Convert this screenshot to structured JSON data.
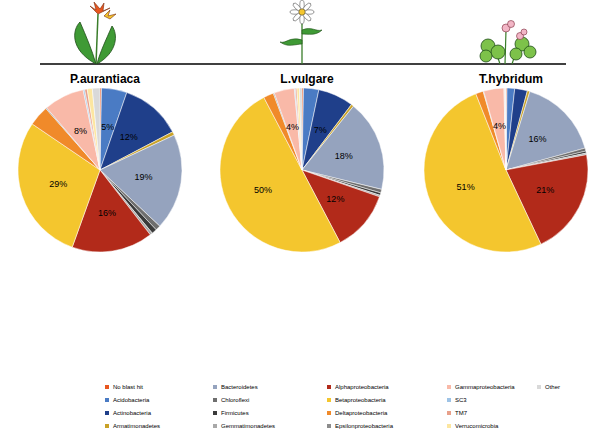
{
  "chart_data": [
    {
      "type": "pie",
      "title": "P.aurantiaca",
      "categories": [
        "No blast hit",
        "Acidobacteria",
        "Actinobacteria",
        "Armatimonadetes",
        "Bacteroidetes",
        "Chloroflexi",
        "Firmicutes",
        "Gemmatimonadetes",
        "Alphaproteobacteria",
        "Betaproteobacteria",
        "Deltaproteobacteria",
        "Epsilonproteobacteria",
        "Gammaproteobacteria",
        "SC3",
        "TM7",
        "Verrucomicrobia",
        "Other"
      ],
      "values": [
        0.3,
        5,
        12,
        0.7,
        19,
        1,
        1,
        0.5,
        16,
        29,
        4,
        0.2,
        8,
        0.3,
        0.5,
        1,
        1.5
      ],
      "value_labels": [
        null,
        "5%",
        "12%",
        null,
        "19%",
        null,
        null,
        null,
        "16%",
        "29%",
        null,
        null,
        "8%",
        null,
        null,
        null,
        null
      ],
      "colors": [
        "#e8561f",
        "#4a7bc4",
        "#1f3f8a",
        "#c9a227",
        "#95a3be",
        "#6e6e6e",
        "#3a3a3a",
        "#a8a8a8",
        "#b22a1a",
        "#f4c62e",
        "#f08a2a",
        "#8c8c8c",
        "#f9b9a8",
        "#9ec3e6",
        "#e8a08a",
        "#fce6a0",
        "#d9d9d9"
      ],
      "data_labels": true,
      "legend": "bottom"
    },
    {
      "type": "pie",
      "title": "L.vulgare",
      "categories": [
        "No blast hit",
        "Acidobacteria",
        "Actinobacteria",
        "Armatimonadetes",
        "Bacteroidetes",
        "Chloroflexi",
        "Firmicutes",
        "Gemmatimonadetes",
        "Alphaproteobacteria",
        "Betaproteobacteria",
        "Deltaproteobacteria",
        "Epsilonproteobacteria",
        "Gammaproteobacteria",
        "SC3",
        "TM7",
        "Verrucomicrobia",
        "Other"
      ],
      "values": [
        0.3,
        3,
        7,
        0.5,
        18,
        0.7,
        0.5,
        0.3,
        12,
        50,
        2,
        0.2,
        4,
        0.2,
        0.3,
        0.5,
        0.5
      ],
      "value_labels": [
        null,
        null,
        "7%",
        null,
        "18%",
        null,
        null,
        null,
        "12%",
        "50%",
        null,
        null,
        "4%",
        null,
        null,
        null,
        null
      ],
      "colors": [
        "#e8561f",
        "#4a7bc4",
        "#1f3f8a",
        "#c9a227",
        "#95a3be",
        "#6e6e6e",
        "#3a3a3a",
        "#a8a8a8",
        "#b22a1a",
        "#f4c62e",
        "#f08a2a",
        "#8c8c8c",
        "#f9b9a8",
        "#9ec3e6",
        "#e8a08a",
        "#fce6a0",
        "#d9d9d9"
      ],
      "data_labels": true
    },
    {
      "type": "pie",
      "title": "T.hybridum",
      "categories": [
        "No blast hit",
        "Acidobacteria",
        "Actinobacteria",
        "Armatimonadetes",
        "Bacteroidetes",
        "Chloroflexi",
        "Firmicutes",
        "Gemmatimonadetes",
        "Alphaproteobacteria",
        "Betaproteobacteria",
        "Deltaproteobacteria",
        "Epsilonproteobacteria",
        "Gammaproteobacteria",
        "SC3",
        "TM7",
        "Verrucomicrobia",
        "Other"
      ],
      "values": [
        0.2,
        1.5,
        2.5,
        0.5,
        16,
        0.6,
        0.4,
        0.3,
        21,
        51,
        1.5,
        0.1,
        4,
        0.1,
        0.1,
        0.1,
        0.1
      ],
      "value_labels": [
        null,
        null,
        null,
        null,
        "16%",
        null,
        null,
        null,
        "21%",
        "51%",
        null,
        null,
        "4%",
        null,
        null,
        null,
        null
      ],
      "colors": [
        "#e8561f",
        "#4a7bc4",
        "#1f3f8a",
        "#c9a227",
        "#95a3be",
        "#6e6e6e",
        "#3a3a3a",
        "#a8a8a8",
        "#b22a1a",
        "#f4c62e",
        "#f08a2a",
        "#8c8c8c",
        "#f9b9a8",
        "#9ec3e6",
        "#e8a08a",
        "#fce6a0",
        "#d9d9d9"
      ],
      "data_labels": true
    }
  ]
}
